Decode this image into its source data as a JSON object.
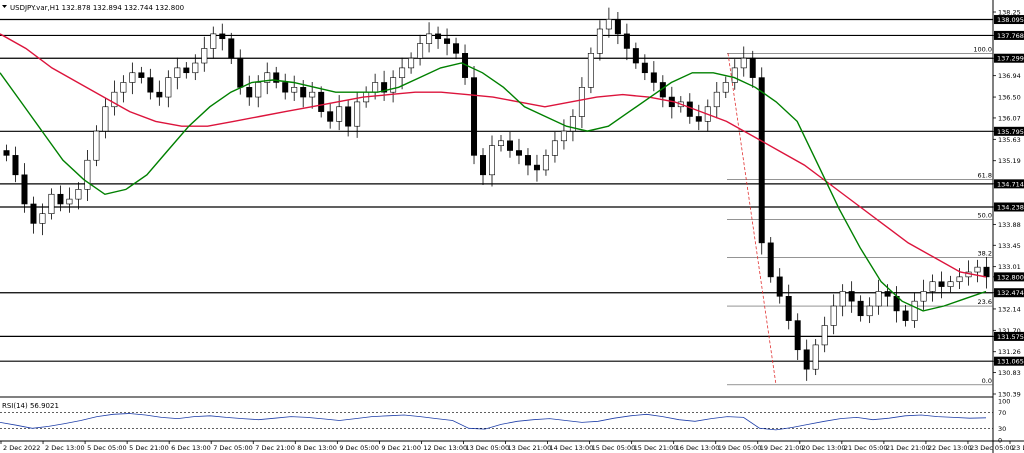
{
  "chart_data": {
    "type": "candlestick",
    "title": "USDJPY.var,H1  132.878 132.894 132.744 132.800",
    "ylim": [
      130.39,
      138.25
    ],
    "y_ticks": [
      138.25,
      137.768,
      137.299,
      136.94,
      136.5,
      136.07,
      135.795,
      135.63,
      135.19,
      134.714,
      134.238,
      133.88,
      133.45,
      133.01,
      132.8,
      132.474,
      132.14,
      131.7,
      131.575,
      131.26,
      131.065,
      130.83,
      130.39
    ],
    "price_labels": [
      {
        "value": 138.095,
        "highlight": true
      },
      {
        "value": 137.768,
        "highlight": true
      },
      {
        "value": 137.299,
        "highlight": true
      },
      {
        "value": 135.795,
        "highlight": true
      },
      {
        "value": 134.714,
        "highlight": true
      },
      {
        "value": 134.238,
        "highlight": true
      },
      {
        "value": 132.8,
        "highlight": true
      },
      {
        "value": 132.474,
        "highlight": true
      },
      {
        "value": 131.575,
        "highlight": true
      },
      {
        "value": 131.065,
        "highlight": true
      }
    ],
    "horizontal_levels": [
      138.095,
      137.768,
      137.299,
      135.795,
      134.714,
      134.238,
      132.474,
      131.575,
      131.065
    ],
    "fibonacci": {
      "levels": [
        {
          "label": "100.0",
          "value": 137.4
        },
        {
          "label": "61.8",
          "value": 134.8
        },
        {
          "label": "50.0",
          "value": 133.98
        },
        {
          "label": "38.2",
          "value": 133.2
        },
        {
          "label": "23.6",
          "value": 132.2
        },
        {
          "label": "0.0",
          "value": 130.58
        }
      ]
    },
    "x_labels": [
      "2 Dec 2022",
      "2 Dec 13:00",
      "5 Dec 05:00",
      "5 Dec 21:00",
      "6 Dec 13:00",
      "7 Dec 05:00",
      "7 Dec 21:00",
      "8 Dec 13:00",
      "9 Dec 05:00",
      "9 Dec 21:00",
      "12 Dec 13:00",
      "13 Dec 05:00",
      "13 Dec 21:00",
      "14 Dec 13:00",
      "15 Dec 05:00",
      "15 Dec 21:00",
      "16 Dec 13:00",
      "19 Dec 05:00",
      "19 Dec 21:00",
      "20 Dec 13:00",
      "21 Dec 05:00",
      "21 Dec 21:00",
      "22 Dec 13:00",
      "23 Dec 05:00",
      "23 Dec 21:00"
    ],
    "close_series": [
      135.3,
      134.9,
      134.3,
      133.9,
      134.1,
      134.5,
      134.3,
      134.4,
      134.6,
      135.2,
      135.8,
      136.3,
      136.6,
      136.8,
      137.0,
      136.9,
      136.6,
      136.5,
      136.9,
      137.1,
      137.0,
      137.2,
      137.5,
      137.8,
      137.7,
      137.3,
      136.7,
      136.5,
      136.8,
      137.0,
      136.8,
      136.6,
      136.7,
      136.5,
      136.6,
      136.2,
      136.0,
      136.3,
      135.9,
      136.4,
      136.6,
      136.8,
      136.6,
      136.9,
      137.1,
      137.3,
      137.6,
      137.8,
      137.7,
      137.6,
      137.4,
      136.9,
      135.3,
      134.9,
      135.5,
      135.6,
      135.4,
      135.3,
      135.1,
      135.0,
      135.3,
      135.6,
      135.8,
      136.1,
      136.7,
      137.4,
      137.9,
      138.1,
      137.8,
      137.5,
      137.2,
      137.0,
      136.8,
      136.5,
      136.3,
      136.4,
      136.1,
      136.0,
      136.3,
      136.6,
      136.8,
      137.1,
      137.3,
      136.9,
      133.5,
      132.8,
      132.4,
      131.9,
      131.3,
      130.9,
      131.4,
      131.8,
      132.2,
      132.5,
      132.3,
      132.0,
      132.2,
      132.5,
      132.4,
      132.1,
      131.9,
      132.3,
      132.5,
      132.7,
      132.6,
      132.7,
      132.8,
      132.9,
      133.0,
      132.8
    ],
    "ma_fast": {
      "color": "#008000",
      "values": [
        137.0,
        136.4,
        135.8,
        135.2,
        134.8,
        134.5,
        134.6,
        134.9,
        135.4,
        135.9,
        136.3,
        136.6,
        136.8,
        136.85,
        136.8,
        136.7,
        136.6,
        136.6,
        136.6,
        136.7,
        136.9,
        137.1,
        137.2,
        137.0,
        136.7,
        136.3,
        136.1,
        135.9,
        135.8,
        135.9,
        136.2,
        136.5,
        136.8,
        137.0,
        137.0,
        136.9,
        136.7,
        136.4,
        136.0,
        135.1,
        134.2,
        133.4,
        132.7,
        132.3,
        132.1,
        132.2,
        132.35,
        132.5
      ]
    },
    "ma_slow": {
      "color": "#dc143c",
      "values": [
        137.8,
        137.5,
        137.1,
        136.8,
        136.5,
        136.2,
        136.0,
        135.9,
        135.9,
        136.0,
        136.1,
        136.2,
        136.3,
        136.4,
        136.5,
        136.55,
        136.6,
        136.6,
        136.55,
        136.5,
        136.4,
        136.3,
        136.4,
        136.5,
        136.55,
        136.5,
        136.4,
        136.2,
        136.0,
        135.7,
        135.4,
        135.1,
        134.7,
        134.3,
        133.9,
        133.5,
        133.2,
        132.9,
        132.8
      ]
    },
    "rsi": {
      "label": "RSI(14) 56.9021",
      "levels": [
        100,
        70,
        30,
        0
      ],
      "color": "#1e3ea8",
      "values": [
        45,
        38,
        30,
        35,
        42,
        50,
        60,
        66,
        68,
        64,
        58,
        55,
        60,
        62,
        58,
        55,
        52,
        56,
        60,
        58,
        54,
        50,
        55,
        60,
        62,
        64,
        60,
        55,
        50,
        30,
        28,
        40,
        48,
        52,
        55,
        50,
        45,
        48,
        56,
        62,
        66,
        60,
        52,
        48,
        55,
        60,
        58,
        30,
        26,
        32,
        40,
        48,
        55,
        58,
        52,
        56,
        62,
        64,
        60,
        58,
        56,
        57
      ]
    }
  }
}
